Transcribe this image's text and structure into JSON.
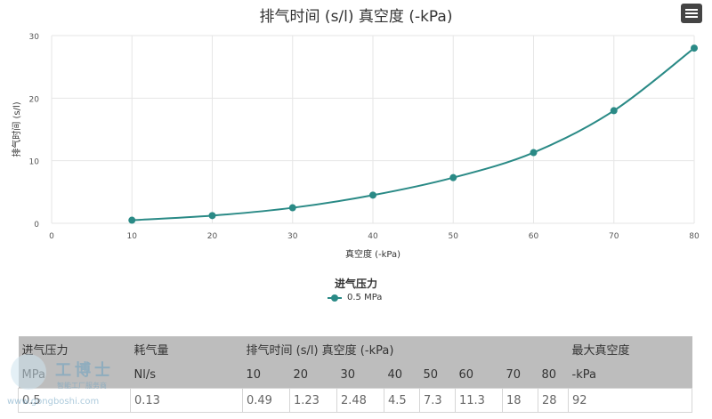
{
  "chart_data": {
    "type": "line",
    "title": "排气时间 (s/l) 真空度 (-kPa)",
    "xlabel": "真空度 (-kPa)",
    "ylabel": "排气时间 (s/l)",
    "xlim": [
      0,
      80
    ],
    "ylim": [
      0,
      30
    ],
    "x_ticks": [
      0,
      10,
      20,
      30,
      40,
      50,
      60,
      70,
      80
    ],
    "y_ticks": [
      0,
      10,
      20,
      30
    ],
    "grid": true,
    "legend_title": "进气压力",
    "legend_position": "bottom-center",
    "series": [
      {
        "name": "0.5 MPa",
        "color": "#2a8a86",
        "x": [
          10,
          20,
          30,
          40,
          50,
          60,
          70,
          80
        ],
        "y": [
          0.49,
          1.23,
          2.48,
          4.5,
          7.3,
          11.3,
          18,
          28
        ]
      }
    ]
  },
  "menu_icon": "hamburger-menu-icon",
  "table": {
    "header_row1": [
      "进气压力",
      "耗气量",
      "排气时间 (s/l) 真空度 (-kPa)",
      "最大真空度"
    ],
    "header_row2": [
      "MPa",
      "Nl/s",
      "10",
      "20",
      "30",
      "40",
      "50",
      "60",
      "70",
      "80",
      "-kPa"
    ],
    "rows": [
      [
        "0.5",
        "0.13",
        "0.49",
        "1.23",
        "2.48",
        "4.5",
        "7.3",
        "11.3",
        "18",
        "28",
        "92"
      ]
    ]
  },
  "watermark": {
    "text": "工博士",
    "sub": "智能工厂服务商",
    "url": "www.gongboshi.com"
  }
}
